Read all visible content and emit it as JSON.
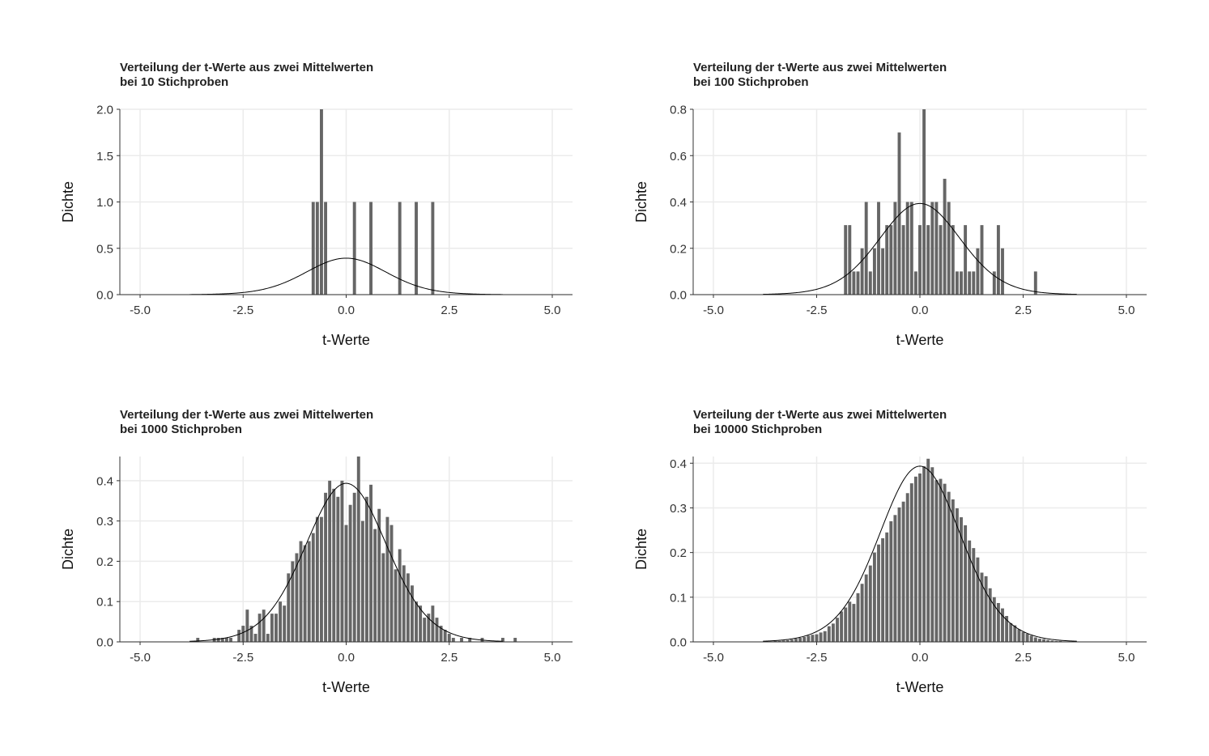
{
  "chart_data": [
    {
      "type": "bar",
      "title": "Verteilung der t-Werte aus zwei Mittelwerten",
      "subtitle": "bei 10 Stichproben",
      "xlabel": "t-Werte",
      "ylabel": "Dichte",
      "xlim": [
        -5.0,
        5.0
      ],
      "ylim": [
        0,
        2.0
      ],
      "xticks": [
        "-5.0",
        "-2.5",
        "0.0",
        "2.5",
        "5.0"
      ],
      "yticks": [
        "0.0",
        "0.5",
        "1.0",
        "1.5",
        "2.0"
      ],
      "grid": true,
      "bin_width": 0.1,
      "bins": [
        [
          -0.8,
          1.0
        ],
        [
          -0.7,
          1.0
        ],
        [
          -0.6,
          2.0
        ],
        [
          -0.5,
          1.0
        ],
        [
          0.2,
          1.0
        ],
        [
          0.6,
          1.0
        ],
        [
          1.3,
          1.0
        ],
        [
          1.7,
          1.0
        ],
        [
          2.1,
          1.0
        ]
      ],
      "density_curve": "Student t, df 18"
    },
    {
      "type": "bar",
      "title": "Verteilung der t-Werte aus zwei Mittelwerten",
      "subtitle": "bei 100 Stichproben",
      "xlabel": "t-Werte",
      "ylabel": "Dichte",
      "xlim": [
        -5.0,
        5.0
      ],
      "ylim": [
        0,
        0.8
      ],
      "xticks": [
        "-5.0",
        "-2.5",
        "0.0",
        "2.5",
        "5.0"
      ],
      "yticks": [
        "0.0",
        "0.2",
        "0.4",
        "0.6",
        "0.8"
      ],
      "grid": true,
      "bin_width": 0.1,
      "bins": [
        [
          -1.8,
          0.3
        ],
        [
          -1.7,
          0.3
        ],
        [
          -1.6,
          0.1
        ],
        [
          -1.5,
          0.1
        ],
        [
          -1.4,
          0.2
        ],
        [
          -1.3,
          0.4
        ],
        [
          -1.2,
          0.1
        ],
        [
          -1.1,
          0.2
        ],
        [
          -1.0,
          0.4
        ],
        [
          -0.9,
          0.2
        ],
        [
          -0.8,
          0.3
        ],
        [
          -0.7,
          0.3
        ],
        [
          -0.6,
          0.4
        ],
        [
          -0.5,
          0.7
        ],
        [
          -0.4,
          0.3
        ],
        [
          -0.3,
          0.4
        ],
        [
          -0.2,
          0.4
        ],
        [
          -0.1,
          0.1
        ],
        [
          0.0,
          0.3
        ],
        [
          0.1,
          0.8
        ],
        [
          0.2,
          0.3
        ],
        [
          0.3,
          0.4
        ],
        [
          0.4,
          0.4
        ],
        [
          0.5,
          0.3
        ],
        [
          0.6,
          0.5
        ],
        [
          0.7,
          0.4
        ],
        [
          0.8,
          0.3
        ],
        [
          0.9,
          0.1
        ],
        [
          1.0,
          0.1
        ],
        [
          1.1,
          0.3
        ],
        [
          1.2,
          0.1
        ],
        [
          1.3,
          0.1
        ],
        [
          1.4,
          0.2
        ],
        [
          1.5,
          0.3
        ],
        [
          1.8,
          0.1
        ],
        [
          1.9,
          0.3
        ],
        [
          2.0,
          0.2
        ],
        [
          2.8,
          0.1
        ]
      ],
      "density_curve": "Student t, df 18"
    },
    {
      "type": "bar",
      "title": "Verteilung der t-Werte aus zwei Mittelwerten",
      "subtitle": "bei 1000 Stichproben",
      "xlabel": "t-Werte",
      "ylabel": "Dichte",
      "xlim": [
        -5.0,
        5.0
      ],
      "ylim": [
        0,
        0.46
      ],
      "xticks": [
        "-5.0",
        "-2.5",
        "0.0",
        "2.5",
        "5.0"
      ],
      "yticks": [
        "0.0",
        "0.1",
        "0.2",
        "0.3",
        "0.4"
      ],
      "grid": true,
      "bin_width": 0.1,
      "bins": [
        [
          -3.6,
          0.01
        ],
        [
          -3.2,
          0.01
        ],
        [
          -3.1,
          0.01
        ],
        [
          -3.0,
          0.01
        ],
        [
          -2.9,
          0.01
        ],
        [
          -2.8,
          0.01
        ],
        [
          -2.6,
          0.03
        ],
        [
          -2.5,
          0.04
        ],
        [
          -2.4,
          0.08
        ],
        [
          -2.3,
          0.04
        ],
        [
          -2.2,
          0.02
        ],
        [
          -2.1,
          0.07
        ],
        [
          -2.0,
          0.08
        ],
        [
          -1.9,
          0.02
        ],
        [
          -1.8,
          0.07
        ],
        [
          -1.7,
          0.07
        ],
        [
          -1.6,
          0.1
        ],
        [
          -1.5,
          0.09
        ],
        [
          -1.4,
          0.17
        ],
        [
          -1.3,
          0.2
        ],
        [
          -1.2,
          0.22
        ],
        [
          -1.1,
          0.25
        ],
        [
          -1.0,
          0.24
        ],
        [
          -0.9,
          0.25
        ],
        [
          -0.8,
          0.27
        ],
        [
          -0.7,
          0.31
        ],
        [
          -0.6,
          0.31
        ],
        [
          -0.5,
          0.37
        ],
        [
          -0.4,
          0.4
        ],
        [
          -0.3,
          0.38
        ],
        [
          -0.2,
          0.36
        ],
        [
          -0.1,
          0.4
        ],
        [
          0.0,
          0.29
        ],
        [
          0.1,
          0.34
        ],
        [
          0.2,
          0.37
        ],
        [
          0.3,
          0.46
        ],
        [
          0.4,
          0.3
        ],
        [
          0.5,
          0.36
        ],
        [
          0.6,
          0.39
        ],
        [
          0.7,
          0.28
        ],
        [
          0.8,
          0.33
        ],
        [
          0.9,
          0.22
        ],
        [
          1.0,
          0.31
        ],
        [
          1.1,
          0.29
        ],
        [
          1.2,
          0.18
        ],
        [
          1.3,
          0.23
        ],
        [
          1.4,
          0.19
        ],
        [
          1.5,
          0.17
        ],
        [
          1.6,
          0.14
        ],
        [
          1.7,
          0.1
        ],
        [
          1.8,
          0.09
        ],
        [
          1.9,
          0.06
        ],
        [
          2.0,
          0.07
        ],
        [
          2.1,
          0.09
        ],
        [
          2.2,
          0.06
        ],
        [
          2.3,
          0.04
        ],
        [
          2.4,
          0.03
        ],
        [
          2.5,
          0.02
        ],
        [
          2.6,
          0.01
        ],
        [
          2.8,
          0.01
        ],
        [
          3.0,
          0.01
        ],
        [
          3.3,
          0.01
        ],
        [
          3.8,
          0.01
        ],
        [
          4.1,
          0.01
        ]
      ],
      "density_curve": "Student t, df 18"
    },
    {
      "type": "bar",
      "title": "Verteilung der t-Werte aus zwei Mittelwerten",
      "subtitle": "bei 10000 Stichproben",
      "xlabel": "t-Werte",
      "ylabel": "Dichte",
      "xlim": [
        -5.0,
        5.0
      ],
      "ylim": [
        0,
        0.415
      ],
      "xticks": [
        "-5.0",
        "-2.5",
        "0.0",
        "2.5",
        "5.0"
      ],
      "yticks": [
        "0.0",
        "0.1",
        "0.2",
        "0.3",
        "0.4"
      ],
      "grid": true,
      "bin_width": 0.1,
      "bins": [
        [
          -3.6,
          0.001
        ],
        [
          -3.5,
          0.002
        ],
        [
          -3.4,
          0.002
        ],
        [
          -3.3,
          0.003
        ],
        [
          -3.2,
          0.004
        ],
        [
          -3.1,
          0.005
        ],
        [
          -3.0,
          0.007
        ],
        [
          -2.9,
          0.009
        ],
        [
          -2.8,
          0.011
        ],
        [
          -2.7,
          0.014
        ],
        [
          -2.6,
          0.016
        ],
        [
          -2.5,
          0.017
        ],
        [
          -2.4,
          0.021
        ],
        [
          -2.3,
          0.024
        ],
        [
          -2.2,
          0.035
        ],
        [
          -2.1,
          0.041
        ],
        [
          -2.0,
          0.054
        ],
        [
          -1.9,
          0.068
        ],
        [
          -1.8,
          0.077
        ],
        [
          -1.7,
          0.09
        ],
        [
          -1.6,
          0.085
        ],
        [
          -1.5,
          0.109
        ],
        [
          -1.4,
          0.13
        ],
        [
          -1.3,
          0.151
        ],
        [
          -1.2,
          0.171
        ],
        [
          -1.1,
          0.2
        ],
        [
          -1.0,
          0.218
        ],
        [
          -0.9,
          0.232
        ],
        [
          -0.8,
          0.245
        ],
        [
          -0.7,
          0.27
        ],
        [
          -0.6,
          0.284
        ],
        [
          -0.5,
          0.301
        ],
        [
          -0.4,
          0.314
        ],
        [
          -0.3,
          0.333
        ],
        [
          -0.2,
          0.355
        ],
        [
          -0.1,
          0.37
        ],
        [
          0.0,
          0.377
        ],
        [
          0.1,
          0.393
        ],
        [
          0.2,
          0.41
        ],
        [
          0.3,
          0.391
        ],
        [
          0.4,
          0.362
        ],
        [
          0.5,
          0.365
        ],
        [
          0.6,
          0.354
        ],
        [
          0.7,
          0.336
        ],
        [
          0.8,
          0.319
        ],
        [
          0.9,
          0.299
        ],
        [
          1.0,
          0.279
        ],
        [
          1.1,
          0.261
        ],
        [
          1.2,
          0.227
        ],
        [
          1.3,
          0.21
        ],
        [
          1.4,
          0.189
        ],
        [
          1.5,
          0.155
        ],
        [
          1.6,
          0.147
        ],
        [
          1.7,
          0.12
        ],
        [
          1.8,
          0.1
        ],
        [
          1.9,
          0.087
        ],
        [
          2.0,
          0.075
        ],
        [
          2.1,
          0.058
        ],
        [
          2.2,
          0.042
        ],
        [
          2.3,
          0.037
        ],
        [
          2.4,
          0.028
        ],
        [
          2.5,
          0.022
        ],
        [
          2.6,
          0.018
        ],
        [
          2.7,
          0.014
        ],
        [
          2.8,
          0.01
        ],
        [
          2.9,
          0.007
        ],
        [
          3.0,
          0.006
        ],
        [
          3.1,
          0.004
        ],
        [
          3.2,
          0.003
        ],
        [
          3.3,
          0.002
        ],
        [
          3.4,
          0.002
        ],
        [
          3.5,
          0.001
        ],
        [
          3.6,
          0.001
        ],
        [
          3.7,
          0.001
        ]
      ],
      "density_curve": "Student t, df 18"
    }
  ]
}
